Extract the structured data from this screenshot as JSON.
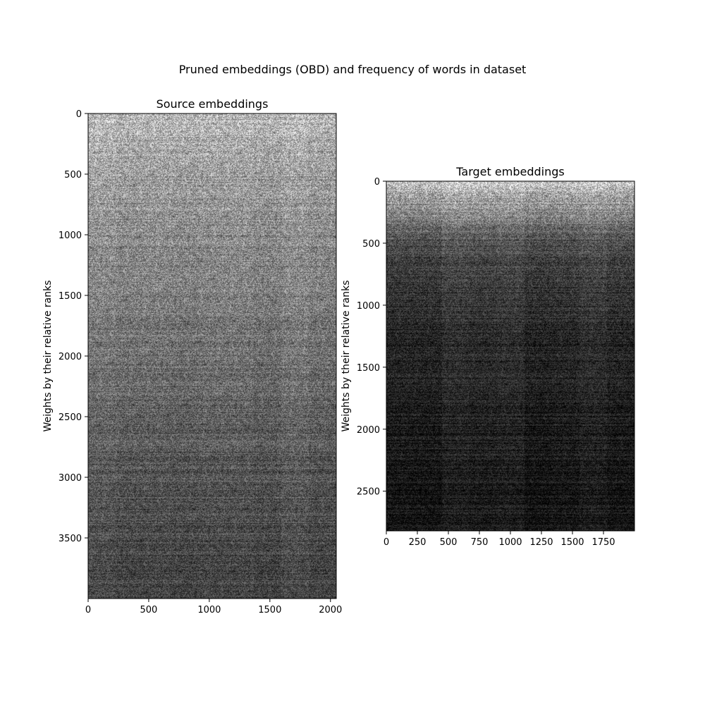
{
  "suptitle": "Pruned embeddings (OBD) and frequency of words in dataset",
  "chart_data": [
    {
      "type": "heatmap",
      "title": "Source embeddings",
      "ylabel": "Weights by their relative ranks",
      "xlabel": "",
      "xlim": [
        0,
        2048
      ],
      "ylim": [
        4000,
        0
      ],
      "xticks": [
        0,
        500,
        1000,
        1500,
        2000
      ],
      "yticks": [
        0,
        500,
        1000,
        1500,
        2000,
        2500,
        3000,
        3500
      ],
      "colormap": "gray",
      "grid": false,
      "legend": "none",
      "intensity_profile": {
        "rank": [
          0,
          500,
          1000,
          1500,
          2000,
          2500,
          3000,
          3500,
          4000
        ],
        "brightness": [
          0.72,
          0.62,
          0.55,
          0.5,
          0.44,
          0.38,
          0.33,
          0.29,
          0.26
        ]
      }
    },
    {
      "type": "heatmap",
      "title": "Target embeddings",
      "ylabel": "Weights by their relative ranks",
      "xlabel": "",
      "xlim": [
        0,
        2000
      ],
      "ylim": [
        2820,
        0
      ],
      "xticks": [
        0,
        250,
        500,
        750,
        1000,
        1250,
        1500,
        1750
      ],
      "yticks": [
        0,
        500,
        1000,
        1500,
        2000,
        2500
      ],
      "colormap": "gray",
      "grid": false,
      "legend": "none",
      "intensity_profile": {
        "rank": [
          0,
          500,
          1000,
          1500,
          2000,
          2500,
          2820
        ],
        "brightness": [
          0.78,
          0.3,
          0.2,
          0.15,
          0.12,
          0.1,
          0.09
        ]
      }
    }
  ]
}
